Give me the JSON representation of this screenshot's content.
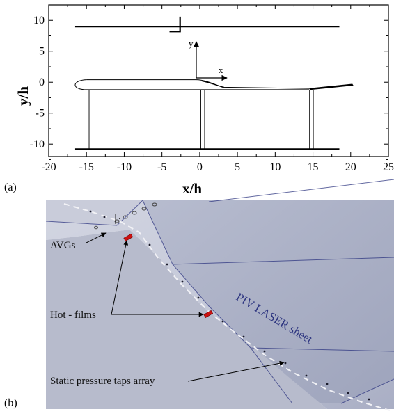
{
  "panel_a": {
    "label": "(a)",
    "x_axis_title": "x/h",
    "y_axis_title": "y/h",
    "x_ticks": [
      -20,
      -15,
      -10,
      -5,
      0,
      5,
      10,
      15,
      20,
      25
    ],
    "x_tick_labels": [
      "-20",
      "-15",
      "-10",
      "-5",
      "0",
      "5",
      "10",
      "15",
      "20",
      "25"
    ],
    "y_ticks": [
      10,
      5,
      0,
      -5,
      -10
    ],
    "y_tick_labels": [
      "10",
      "5",
      "0",
      "-5",
      "-10"
    ],
    "inner_x_label": "x",
    "inner_y_label": "y"
  },
  "panel_b": {
    "label": "(b)",
    "callouts": {
      "avgs": "AVGs",
      "hot_films": "Hot - films",
      "static_taps": "Static pressure taps array"
    },
    "laser_sheet_label": "PIV LASER sheet",
    "colors": {
      "surface": "#c3c7d7",
      "hot_film": "#cc1111",
      "laser_line": "#2d3580"
    }
  }
}
